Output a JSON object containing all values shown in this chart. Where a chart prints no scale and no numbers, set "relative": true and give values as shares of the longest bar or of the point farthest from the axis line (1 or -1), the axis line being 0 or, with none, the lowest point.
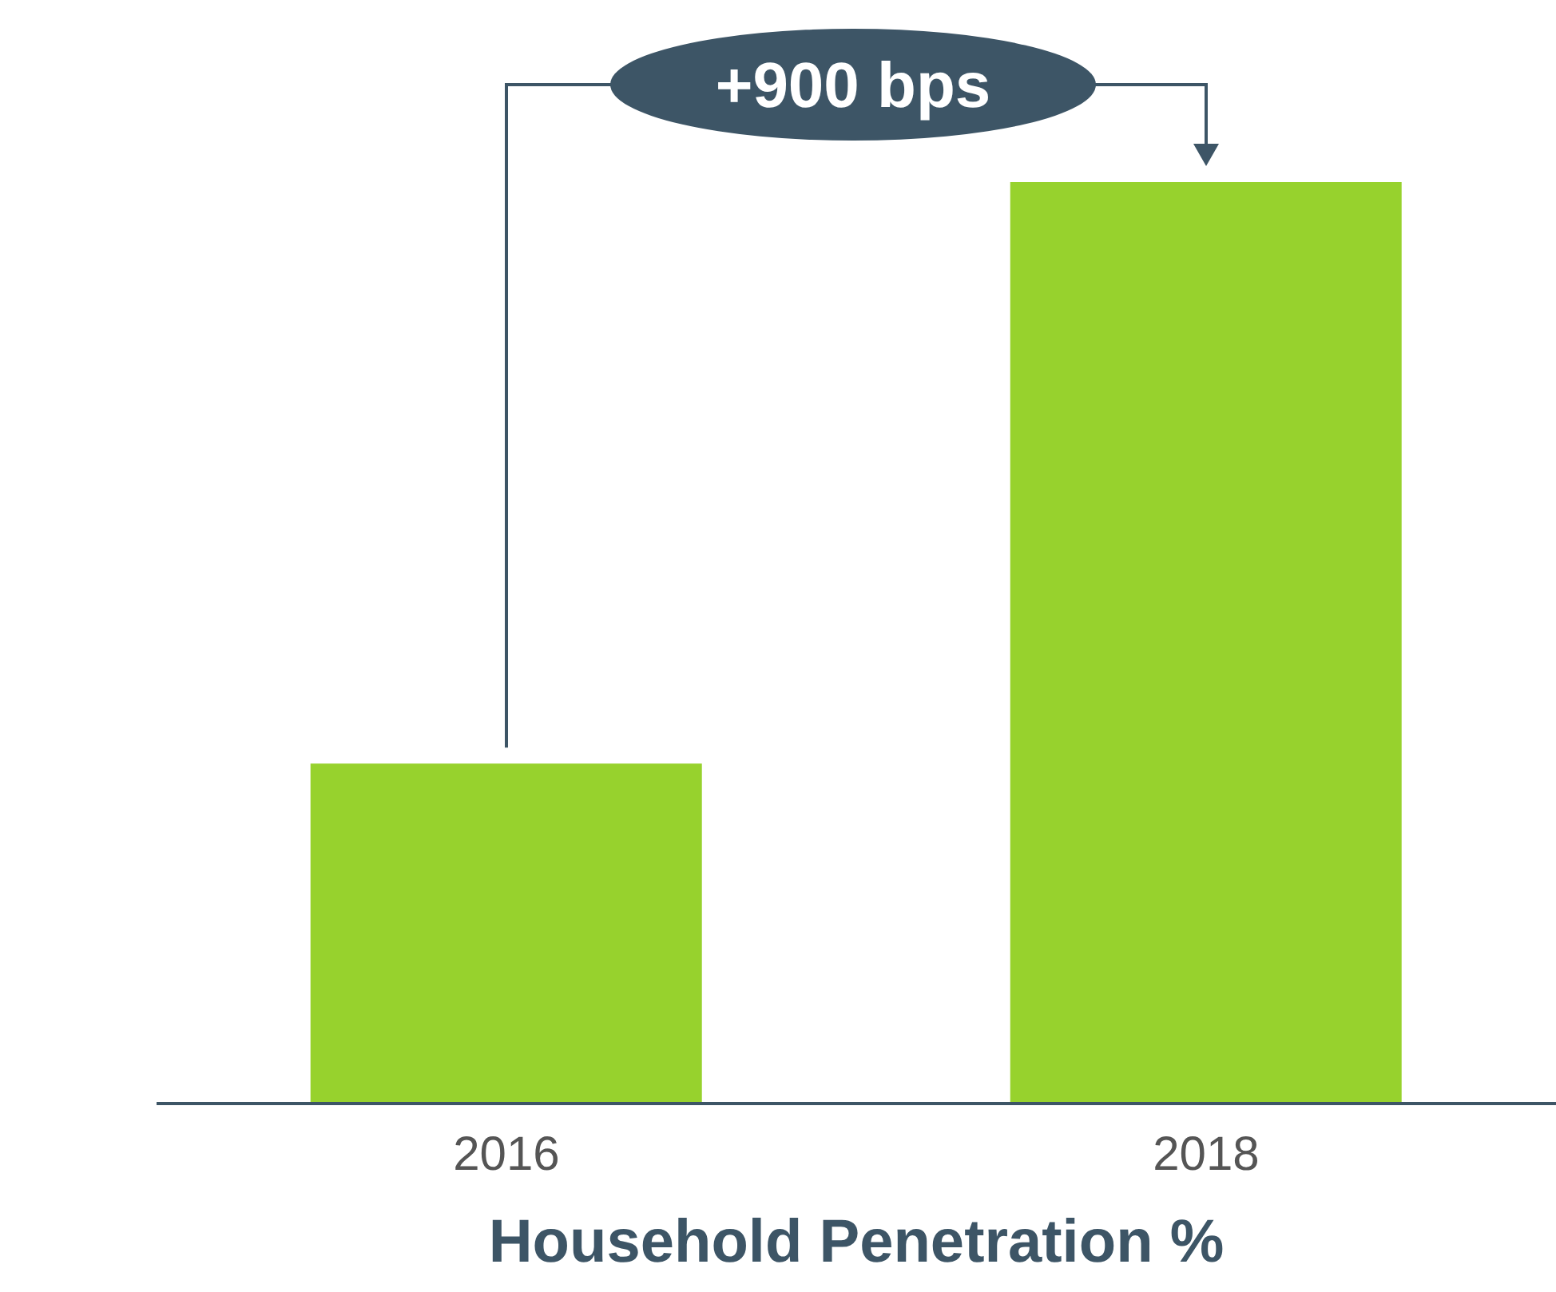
{
  "chart_data": {
    "type": "bar",
    "relative": true,
    "xlabel": "Household Penetration %",
    "categories": [
      "2016",
      "2018"
    ],
    "values": [
      0.369,
      1
    ],
    "color": "#97d22d",
    "annotations": [
      "+900 bps"
    ]
  }
}
